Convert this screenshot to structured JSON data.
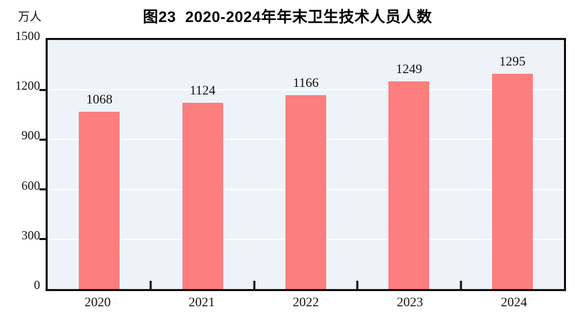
{
  "chart_data": {
    "type": "bar",
    "title": "图23  2020-2024年年末卫生技术人员人数",
    "unit_label": "万人",
    "categories": [
      "2020",
      "2021",
      "2022",
      "2023",
      "2024"
    ],
    "values": [
      1068,
      1124,
      1166,
      1249,
      1295
    ],
    "value_labels": [
      "1068",
      "1124",
      "1166",
      "1249",
      "1295"
    ],
    "ylim": [
      0,
      1500
    ],
    "yticks": [
      0,
      300,
      600,
      900,
      1200,
      1500
    ],
    "ytick_labels": [
      "0",
      "300",
      "600",
      "900",
      "1200",
      "1500"
    ],
    "grid": "horizontal-white-lines",
    "legend": "none",
    "bar_color": "#FC7E7E",
    "plot_background": "#EDF3F8",
    "axis_color": "#121212",
    "gridline_color": "#FFFFFF"
  }
}
